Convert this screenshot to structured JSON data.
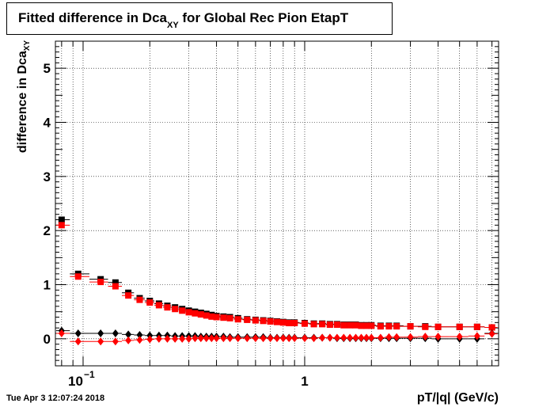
{
  "title": {
    "prefix": "Fitted difference in Dca",
    "sub": "XY",
    "suffix": " for Global Rec Pion EtapT"
  },
  "ylabel": {
    "main": "difference in Dca",
    "sub": "XY"
  },
  "xlabel": "pT/|q| (GeV/c)",
  "timestamp": "Tue Apr  3 12:07:24 2018",
  "chart_data": {
    "type": "scatter",
    "title": "Fitted difference in DcaXY for Global Rec Pion EtapT",
    "xlabel": "pT/|q| (GeV/c)",
    "ylabel": "difference in DcaXY",
    "xscale": "log",
    "xlim": [
      0.075,
      7.5
    ],
    "ylim": [
      -0.5,
      5.5
    ],
    "grid": true,
    "x_tick_labels": [
      {
        "value": 0.1,
        "base": "10",
        "exp": "−1"
      },
      {
        "value": 1,
        "base": "1",
        "exp": ""
      }
    ],
    "y_ticks": [
      0,
      1,
      2,
      3,
      4,
      5
    ],
    "series": [
      {
        "color": "#000000",
        "marker": "square",
        "points": [
          [
            0.08,
            2.2
          ],
          [
            0.095,
            1.2
          ],
          [
            0.12,
            1.1
          ],
          [
            0.14,
            1.04
          ],
          [
            0.16,
            0.85
          ],
          [
            0.18,
            0.75
          ],
          [
            0.2,
            0.7
          ],
          [
            0.22,
            0.65
          ],
          [
            0.24,
            0.61
          ],
          [
            0.26,
            0.58
          ],
          [
            0.28,
            0.55
          ],
          [
            0.3,
            0.52
          ],
          [
            0.32,
            0.5
          ],
          [
            0.34,
            0.48
          ],
          [
            0.36,
            0.46
          ],
          [
            0.38,
            0.44
          ],
          [
            0.4,
            0.42
          ],
          [
            0.43,
            0.41
          ],
          [
            0.46,
            0.4
          ],
          [
            0.5,
            0.38
          ],
          [
            0.55,
            0.36
          ],
          [
            0.6,
            0.35
          ],
          [
            0.65,
            0.34
          ],
          [
            0.7,
            0.33
          ],
          [
            0.75,
            0.32
          ],
          [
            0.8,
            0.31
          ],
          [
            0.85,
            0.3
          ],
          [
            0.9,
            0.3
          ],
          [
            1.0,
            0.29
          ],
          [
            1.1,
            0.28
          ],
          [
            1.2,
            0.28
          ],
          [
            1.3,
            0.27
          ],
          [
            1.4,
            0.27
          ],
          [
            1.5,
            0.26
          ],
          [
            1.6,
            0.26
          ],
          [
            1.7,
            0.26
          ],
          [
            1.8,
            0.25
          ],
          [
            1.9,
            0.25
          ],
          [
            2.0,
            0.25
          ],
          [
            2.2,
            0.24
          ],
          [
            2.4,
            0.24
          ],
          [
            2.6,
            0.24
          ],
          [
            3.0,
            0.23
          ],
          [
            3.5,
            0.23
          ],
          [
            4.0,
            0.22
          ],
          [
            5.0,
            0.22
          ],
          [
            6.0,
            0.22
          ],
          [
            7.0,
            0.21
          ]
        ]
      },
      {
        "color": "#ff0000",
        "marker": "square",
        "points": [
          [
            0.08,
            2.1
          ],
          [
            0.095,
            1.15
          ],
          [
            0.12,
            1.05
          ],
          [
            0.14,
            0.97
          ],
          [
            0.16,
            0.8
          ],
          [
            0.18,
            0.72
          ],
          [
            0.2,
            0.67
          ],
          [
            0.22,
            0.62
          ],
          [
            0.24,
            0.58
          ],
          [
            0.26,
            0.55
          ],
          [
            0.28,
            0.52
          ],
          [
            0.3,
            0.49
          ],
          [
            0.32,
            0.47
          ],
          [
            0.34,
            0.45
          ],
          [
            0.36,
            0.43
          ],
          [
            0.38,
            0.41
          ],
          [
            0.4,
            0.4
          ],
          [
            0.43,
            0.39
          ],
          [
            0.46,
            0.38
          ],
          [
            0.5,
            0.36
          ],
          [
            0.55,
            0.35
          ],
          [
            0.6,
            0.34
          ],
          [
            0.65,
            0.33
          ],
          [
            0.7,
            0.32
          ],
          [
            0.75,
            0.31
          ],
          [
            0.8,
            0.3
          ],
          [
            0.85,
            0.29
          ],
          [
            0.9,
            0.29
          ],
          [
            1.0,
            0.28
          ],
          [
            1.1,
            0.27
          ],
          [
            1.2,
            0.27
          ],
          [
            1.3,
            0.26
          ],
          [
            1.4,
            0.26
          ],
          [
            1.5,
            0.25
          ],
          [
            1.6,
            0.25
          ],
          [
            1.7,
            0.25
          ],
          [
            1.8,
            0.24
          ],
          [
            1.9,
            0.24
          ],
          [
            2.0,
            0.24
          ],
          [
            2.2,
            0.23
          ],
          [
            2.4,
            0.23
          ],
          [
            2.6,
            0.23
          ],
          [
            3.0,
            0.23
          ],
          [
            3.5,
            0.22
          ],
          [
            4.0,
            0.22
          ],
          [
            5.0,
            0.22
          ],
          [
            6.0,
            0.22
          ],
          [
            7.0,
            0.21
          ]
        ]
      },
      {
        "color": "#000000",
        "marker": "diamond",
        "points": [
          [
            0.08,
            0.15
          ],
          [
            0.095,
            0.1
          ],
          [
            0.12,
            0.1
          ],
          [
            0.14,
            0.1
          ],
          [
            0.16,
            0.08
          ],
          [
            0.18,
            0.07
          ],
          [
            0.2,
            0.06
          ],
          [
            0.22,
            0.06
          ],
          [
            0.24,
            0.06
          ],
          [
            0.26,
            0.05
          ],
          [
            0.28,
            0.05
          ],
          [
            0.3,
            0.05
          ],
          [
            0.32,
            0.05
          ],
          [
            0.34,
            0.04
          ],
          [
            0.36,
            0.04
          ],
          [
            0.38,
            0.04
          ],
          [
            0.4,
            0.04
          ],
          [
            0.43,
            0.04
          ],
          [
            0.46,
            0.03
          ],
          [
            0.5,
            0.03
          ],
          [
            0.55,
            0.03
          ],
          [
            0.6,
            0.03
          ],
          [
            0.65,
            0.03
          ],
          [
            0.7,
            0.02
          ],
          [
            0.75,
            0.02
          ],
          [
            0.8,
            0.02
          ],
          [
            0.85,
            0.02
          ],
          [
            0.9,
            0.02
          ],
          [
            1.0,
            0.02
          ],
          [
            1.1,
            0.02
          ],
          [
            1.2,
            0.02
          ],
          [
            1.3,
            0.02
          ],
          [
            1.4,
            0.01
          ],
          [
            1.5,
            0.01
          ],
          [
            1.6,
            0.01
          ],
          [
            1.7,
            0.01
          ],
          [
            1.8,
            0.01
          ],
          [
            1.9,
            0.01
          ],
          [
            2.0,
            0.01
          ],
          [
            2.2,
            0.01
          ],
          [
            2.4,
            0.01
          ],
          [
            2.6,
            0.01
          ],
          [
            3.0,
            0.01
          ],
          [
            3.5,
            0.01
          ],
          [
            4.0,
            0.0
          ],
          [
            5.0,
            0.0
          ],
          [
            6.0,
            0.0
          ],
          [
            7.0,
            0.1
          ]
        ]
      },
      {
        "color": "#ff0000",
        "marker": "diamond",
        "points": [
          [
            0.08,
            0.1
          ],
          [
            0.095,
            -0.05
          ],
          [
            0.12,
            -0.05
          ],
          [
            0.14,
            -0.05
          ],
          [
            0.16,
            -0.03
          ],
          [
            0.18,
            -0.02
          ],
          [
            0.2,
            -0.01
          ],
          [
            0.22,
            0.0
          ],
          [
            0.24,
            0.0
          ],
          [
            0.26,
            0.0
          ],
          [
            0.28,
            0.0
          ],
          [
            0.3,
            0.0
          ],
          [
            0.32,
            0.01
          ],
          [
            0.34,
            0.01
          ],
          [
            0.36,
            0.01
          ],
          [
            0.38,
            0.01
          ],
          [
            0.4,
            0.01
          ],
          [
            0.43,
            0.01
          ],
          [
            0.46,
            0.01
          ],
          [
            0.5,
            0.01
          ],
          [
            0.55,
            0.01
          ],
          [
            0.6,
            0.01
          ],
          [
            0.65,
            0.01
          ],
          [
            0.7,
            0.01
          ],
          [
            0.75,
            0.01
          ],
          [
            0.8,
            0.01
          ],
          [
            0.85,
            0.01
          ],
          [
            0.9,
            0.01
          ],
          [
            1.0,
            0.01
          ],
          [
            1.1,
            0.01
          ],
          [
            1.2,
            0.02
          ],
          [
            1.3,
            0.02
          ],
          [
            1.4,
            0.02
          ],
          [
            1.5,
            0.02
          ],
          [
            1.6,
            0.02
          ],
          [
            1.7,
            0.02
          ],
          [
            1.8,
            0.02
          ],
          [
            1.9,
            0.02
          ],
          [
            2.0,
            0.02
          ],
          [
            2.2,
            0.02
          ],
          [
            2.4,
            0.03
          ],
          [
            2.6,
            0.03
          ],
          [
            3.0,
            0.03
          ],
          [
            3.5,
            0.04
          ],
          [
            4.0,
            0.04
          ],
          [
            5.0,
            0.04
          ],
          [
            6.0,
            0.05
          ],
          [
            7.0,
            0.09
          ]
        ]
      }
    ]
  }
}
